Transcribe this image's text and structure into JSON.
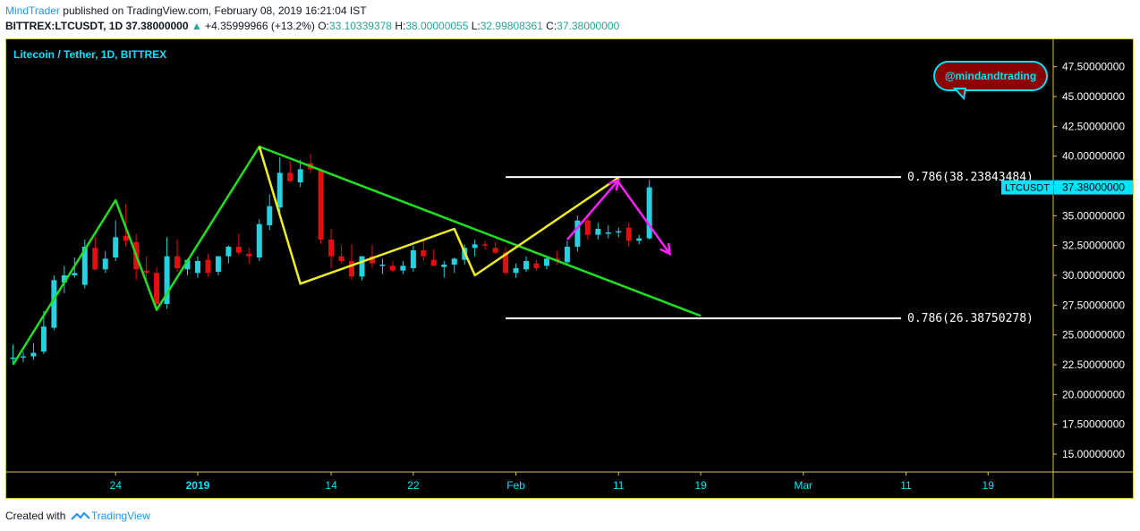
{
  "header": {
    "author": "MindTrader",
    "published": "published on TradingView.com, February 08, 2019 16:21:04 IST",
    "symbol": "BITTREX:LTCUSDT, 1D",
    "last": "37.38000000",
    "change_arrow": "▲",
    "change": "+4.35999966 (+13.2%)",
    "o_label": "O:",
    "o": "33.10339378",
    "h_label": "H:",
    "h": "38.00000055",
    "l_label": "L:",
    "l": "32.99808361",
    "c_label": "C:",
    "c": "37.38000000"
  },
  "footer": {
    "created": "Created with",
    "brand": "TradingView",
    "icon": "tradingview-logo-icon"
  },
  "colors": {
    "background": "#000000",
    "up": "#26d0e0",
    "down": "#e01010",
    "green_line": "#22dd22",
    "yellow_line": "#eeee22",
    "magenta_arrow": "#ff22ff",
    "level_line": "#ffffff",
    "axis_text": "#ffffff",
    "accent": "#00e5ff"
  },
  "chart_data": {
    "type": "candlestick",
    "title": "Litecoin / Tether, 1D, BITTREX",
    "watermark": "@mindandtrading",
    "ylim": [
      13.5,
      49.8
    ],
    "y_ticks": [
      15,
      17.5,
      20,
      22.5,
      25,
      27.5,
      30,
      32.5,
      35,
      37.5,
      40,
      42.5,
      45,
      47.5
    ],
    "y_tick_labels": [
      "15.00000000",
      "17.50000000",
      "20.00000000",
      "22.50000000",
      "25.00000000",
      "27.50000000",
      "30.00000000",
      "32.50000000",
      "35.00000000",
      "37.50000000",
      "40.00000000",
      "42.50000000",
      "45.00000000",
      "47.50000000"
    ],
    "x_start": "2018-12-14",
    "x_end": "2019-03-26",
    "x_ticks": [
      {
        "date": "2018-12-24",
        "label": "24",
        "bold": false
      },
      {
        "date": "2019-01-01",
        "label": "2019",
        "bold": true
      },
      {
        "date": "2019-01-14",
        "label": "14",
        "bold": false
      },
      {
        "date": "2019-01-22",
        "label": "22",
        "bold": false
      },
      {
        "date": "2019-02-01",
        "label": "Feb",
        "bold": false
      },
      {
        "date": "2019-02-11",
        "label": "11",
        "bold": false
      },
      {
        "date": "2019-02-19",
        "label": "19",
        "bold": false
      },
      {
        "date": "2019-03-01",
        "label": "Mar",
        "bold": false
      },
      {
        "date": "2019-03-11",
        "label": "11",
        "bold": false
      },
      {
        "date": "2019-03-19",
        "label": "19",
        "bold": false
      }
    ],
    "candles": [
      {
        "date": "2018-12-14",
        "o": 23.0,
        "h": 24.2,
        "l": 22.6,
        "c": 23.1
      },
      {
        "date": "2018-12-15",
        "o": 23.1,
        "h": 23.6,
        "l": 22.7,
        "c": 23.2
      },
      {
        "date": "2018-12-16",
        "o": 23.2,
        "h": 24.3,
        "l": 22.9,
        "c": 23.5
      },
      {
        "date": "2018-12-17",
        "o": 23.6,
        "h": 27.0,
        "l": 23.4,
        "c": 25.7
      },
      {
        "date": "2018-12-18",
        "o": 25.6,
        "h": 30.0,
        "l": 25.4,
        "c": 29.6
      },
      {
        "date": "2018-12-19",
        "o": 29.4,
        "h": 30.8,
        "l": 28.5,
        "c": 30.0
      },
      {
        "date": "2018-12-20",
        "o": 30.0,
        "h": 31.5,
        "l": 29.8,
        "c": 30.2
      },
      {
        "date": "2018-12-21",
        "o": 29.2,
        "h": 33.0,
        "l": 28.9,
        "c": 32.4
      },
      {
        "date": "2018-12-22",
        "o": 32.3,
        "h": 33.2,
        "l": 30.4,
        "c": 30.5
      },
      {
        "date": "2018-12-23",
        "o": 30.5,
        "h": 32.0,
        "l": 30.2,
        "c": 31.4
      },
      {
        "date": "2018-12-24",
        "o": 31.5,
        "h": 34.6,
        "l": 31.2,
        "c": 33.2
      },
      {
        "date": "2018-12-25",
        "o": 33.3,
        "h": 36.0,
        "l": 32.4,
        "c": 32.9
      },
      {
        "date": "2018-12-26",
        "o": 32.8,
        "h": 33.5,
        "l": 29.6,
        "c": 30.5
      },
      {
        "date": "2018-12-27",
        "o": 30.4,
        "h": 31.6,
        "l": 29.5,
        "c": 30.2
      },
      {
        "date": "2018-12-28",
        "o": 30.2,
        "h": 30.7,
        "l": 27.3,
        "c": 27.6
      },
      {
        "date": "2018-12-29",
        "o": 27.6,
        "h": 33.2,
        "l": 27.2,
        "c": 31.6
      },
      {
        "date": "2018-12-30",
        "o": 31.6,
        "h": 33.0,
        "l": 30.3,
        "c": 30.6
      },
      {
        "date": "2018-12-31",
        "o": 30.5,
        "h": 31.4,
        "l": 30.0,
        "c": 31.3
      },
      {
        "date": "2019-01-01",
        "o": 30.2,
        "h": 31.6,
        "l": 29.8,
        "c": 31.2
      },
      {
        "date": "2019-01-02",
        "o": 31.3,
        "h": 31.8,
        "l": 29.9,
        "c": 30.2
      },
      {
        "date": "2019-01-03",
        "o": 30.3,
        "h": 31.6,
        "l": 30.0,
        "c": 31.6
      },
      {
        "date": "2019-01-04",
        "o": 31.6,
        "h": 32.5,
        "l": 31.0,
        "c": 32.4
      },
      {
        "date": "2019-01-05",
        "o": 32.4,
        "h": 33.5,
        "l": 31.7,
        "c": 31.9
      },
      {
        "date": "2019-01-06",
        "o": 31.8,
        "h": 32.3,
        "l": 31.0,
        "c": 31.6
      },
      {
        "date": "2019-01-07",
        "o": 31.5,
        "h": 34.7,
        "l": 31.2,
        "c": 34.3
      },
      {
        "date": "2019-01-08",
        "o": 34.2,
        "h": 36.8,
        "l": 33.8,
        "c": 35.8
      },
      {
        "date": "2019-01-09",
        "o": 35.7,
        "h": 39.9,
        "l": 35.3,
        "c": 38.6
      },
      {
        "date": "2019-01-10",
        "o": 38.6,
        "h": 39.6,
        "l": 37.8,
        "c": 37.9
      },
      {
        "date": "2019-01-11",
        "o": 37.8,
        "h": 39.7,
        "l": 37.4,
        "c": 38.9
      },
      {
        "date": "2019-01-12",
        "o": 39.4,
        "h": 40.2,
        "l": 38.6,
        "c": 38.9
      },
      {
        "date": "2019-01-13",
        "o": 38.8,
        "h": 39.0,
        "l": 32.6,
        "c": 33.0
      },
      {
        "date": "2019-01-14",
        "o": 33.0,
        "h": 33.9,
        "l": 30.6,
        "c": 31.6
      },
      {
        "date": "2019-01-15",
        "o": 31.6,
        "h": 32.5,
        "l": 31.0,
        "c": 31.2
      },
      {
        "date": "2019-01-16",
        "o": 31.2,
        "h": 32.6,
        "l": 29.6,
        "c": 29.9
      },
      {
        "date": "2019-01-17",
        "o": 29.9,
        "h": 31.6,
        "l": 29.6,
        "c": 31.6
      },
      {
        "date": "2019-01-18",
        "o": 31.6,
        "h": 32.6,
        "l": 30.6,
        "c": 31.0
      },
      {
        "date": "2019-01-19",
        "o": 30.9,
        "h": 31.4,
        "l": 30.1,
        "c": 30.9
      },
      {
        "date": "2019-01-20",
        "o": 30.8,
        "h": 31.2,
        "l": 30.3,
        "c": 30.4
      },
      {
        "date": "2019-01-21",
        "o": 30.4,
        "h": 31.2,
        "l": 30.1,
        "c": 30.8
      },
      {
        "date": "2019-01-22",
        "o": 30.6,
        "h": 32.5,
        "l": 30.3,
        "c": 32.1
      },
      {
        "date": "2019-01-23",
        "o": 32.1,
        "h": 33.0,
        "l": 31.2,
        "c": 31.6
      },
      {
        "date": "2019-01-24",
        "o": 31.3,
        "h": 32.2,
        "l": 30.8,
        "c": 30.8
      },
      {
        "date": "2019-01-25",
        "o": 30.7,
        "h": 31.2,
        "l": 29.8,
        "c": 30.9
      },
      {
        "date": "2019-01-26",
        "o": 30.9,
        "h": 31.5,
        "l": 30.2,
        "c": 31.4
      },
      {
        "date": "2019-01-27",
        "o": 31.3,
        "h": 32.6,
        "l": 30.9,
        "c": 32.3
      },
      {
        "date": "2019-01-28",
        "o": 32.3,
        "h": 33.0,
        "l": 31.6,
        "c": 32.6
      },
      {
        "date": "2019-01-29",
        "o": 32.6,
        "h": 32.9,
        "l": 32.2,
        "c": 32.5
      },
      {
        "date": "2019-01-30",
        "o": 32.3,
        "h": 32.8,
        "l": 31.8,
        "c": 31.9
      },
      {
        "date": "2019-01-31",
        "o": 31.9,
        "h": 32.4,
        "l": 30.0,
        "c": 30.2
      },
      {
        "date": "2019-02-01",
        "o": 30.2,
        "h": 31.0,
        "l": 29.8,
        "c": 30.6
      },
      {
        "date": "2019-02-02",
        "o": 30.5,
        "h": 31.6,
        "l": 30.3,
        "c": 31.2
      },
      {
        "date": "2019-02-03",
        "o": 31.0,
        "h": 31.3,
        "l": 30.4,
        "c": 30.6
      },
      {
        "date": "2019-02-04",
        "o": 30.8,
        "h": 31.5,
        "l": 30.5,
        "c": 31.4
      },
      {
        "date": "2019-02-05",
        "o": 31.4,
        "h": 32.0,
        "l": 30.9,
        "c": 31.2
      },
      {
        "date": "2019-02-06",
        "o": 31.1,
        "h": 32.9,
        "l": 30.9,
        "c": 32.4
      },
      {
        "date": "2019-02-07",
        "o": 32.4,
        "h": 35.0,
        "l": 32.0,
        "c": 34.6
      },
      {
        "date": "2019-02-08",
        "o": 34.6,
        "h": 35.0,
        "l": 33.0,
        "c": 33.4
      },
      {
        "date": "2019-02-09",
        "o": 33.4,
        "h": 34.4,
        "l": 33.0,
        "c": 33.9
      },
      {
        "date": "2019-02-10",
        "o": 33.5,
        "h": 34.2,
        "l": 33.1,
        "c": 33.6
      },
      {
        "date": "2019-02-11",
        "o": 33.6,
        "h": 34.0,
        "l": 33.2,
        "c": 33.7
      },
      {
        "date": "2019-02-12",
        "o": 34.0,
        "h": 34.4,
        "l": 32.4,
        "c": 32.9
      },
      {
        "date": "2019-02-13",
        "o": 32.9,
        "h": 33.4,
        "l": 32.6,
        "c": 33.1
      },
      {
        "date": "2019-02-14",
        "o": 33.10339378,
        "h": 38.00000055,
        "l": 32.99808361,
        "c": 37.38
      }
    ],
    "annotations": {
      "green_zigzag": [
        {
          "date": "2018-12-14",
          "v": 22.5
        },
        {
          "date": "2018-12-24",
          "v": 36.3
        },
        {
          "date": "2018-12-28",
          "v": 27.1
        },
        {
          "date": "2019-01-07",
          "v": 40.8
        },
        {
          "date": "2019-02-19",
          "v": 26.6
        }
      ],
      "yellow_zigzag": [
        {
          "date": "2019-01-07",
          "v": 40.8
        },
        {
          "date": "2019-01-11",
          "v": 29.3
        },
        {
          "date": "2019-01-26",
          "v": 33.9
        },
        {
          "date": "2019-01-28",
          "v": 30.0
        },
        {
          "date": "2019-02-11",
          "v": 38.2
        }
      ],
      "magenta_arrows": [
        {
          "from": {
            "date": "2019-02-06",
            "v": 33.0
          },
          "to": {
            "date": "2019-02-11",
            "v": 38.0
          }
        },
        {
          "from": {
            "date": "2019-02-11",
            "v": 37.8
          },
          "to": {
            "date": "2019-02-16",
            "v": 31.8
          }
        }
      ],
      "levels": [
        {
          "from": "2019-01-31",
          "to": "2019-02-17",
          "v": 38.23843484,
          "label": "0.786(38.23843484)"
        },
        {
          "from": "2019-01-31",
          "to": "2019-02-17",
          "v": 26.38750278,
          "label": "0.786(26.38750278)"
        }
      ]
    },
    "price_label": {
      "symbol": "LTCUSDT",
      "value": "37.38000000",
      "v": 37.38
    }
  }
}
